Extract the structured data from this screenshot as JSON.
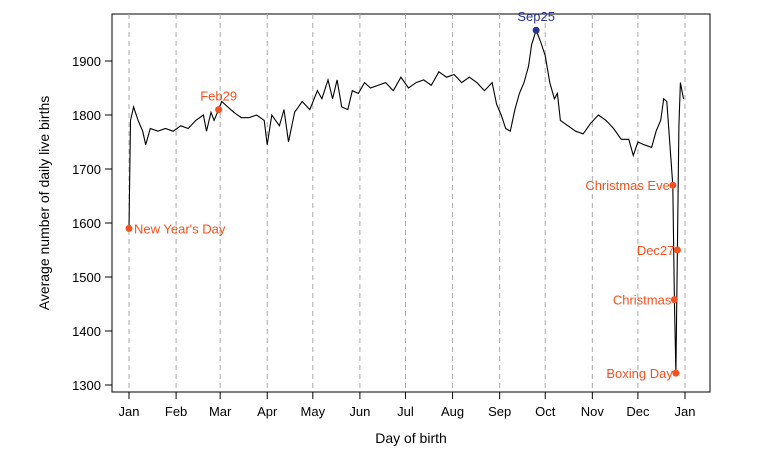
{
  "chart_data": {
    "type": "line",
    "xlabel": "Day of birth",
    "ylabel": "Average number of daily live births",
    "xlim": [
      1,
      366
    ],
    "ylim": [
      1300,
      1980
    ],
    "yticks": [
      1300,
      1400,
      1500,
      1600,
      1700,
      1800,
      1900
    ],
    "xticks": [
      {
        "label": "Jan",
        "day": 1
      },
      {
        "label": "Feb",
        "day": 32
      },
      {
        "label": "Mar",
        "day": 61
      },
      {
        "label": "Apr",
        "day": 92
      },
      {
        "label": "May",
        "day": 122
      },
      {
        "label": "Jun",
        "day": 153
      },
      {
        "label": "Jul",
        "day": 183
      },
      {
        "label": "Aug",
        "day": 214
      },
      {
        "label": "Sep",
        "day": 245
      },
      {
        "label": "Oct",
        "day": 275
      },
      {
        "label": "Nov",
        "day": 306
      },
      {
        "label": "Dec",
        "day": 336
      },
      {
        "label": "Jan",
        "day": 367
      }
    ],
    "grid": "vertical dashed at month starts",
    "line_color": "#000000",
    "series": [
      [
        1,
        1590
      ],
      [
        2,
        1790
      ],
      [
        4,
        1815
      ],
      [
        7,
        1790
      ],
      [
        10,
        1770
      ],
      [
        12,
        1745
      ],
      [
        15,
        1775
      ],
      [
        20,
        1770
      ],
      [
        25,
        1775
      ],
      [
        30,
        1770
      ],
      [
        35,
        1780
      ],
      [
        40,
        1775
      ],
      [
        45,
        1790
      ],
      [
        50,
        1800
      ],
      [
        52,
        1770
      ],
      [
        55,
        1805
      ],
      [
        57,
        1790
      ],
      [
        60,
        1810
      ],
      [
        62,
        1825
      ],
      [
        66,
        1815
      ],
      [
        70,
        1805
      ],
      [
        75,
        1795
      ],
      [
        80,
        1795
      ],
      [
        85,
        1800
      ],
      [
        90,
        1790
      ],
      [
        92,
        1745
      ],
      [
        95,
        1800
      ],
      [
        100,
        1780
      ],
      [
        103,
        1810
      ],
      [
        106,
        1750
      ],
      [
        110,
        1805
      ],
      [
        115,
        1825
      ],
      [
        120,
        1810
      ],
      [
        125,
        1845
      ],
      [
        128,
        1830
      ],
      [
        132,
        1865
      ],
      [
        135,
        1830
      ],
      [
        138,
        1865
      ],
      [
        141,
        1815
      ],
      [
        145,
        1810
      ],
      [
        148,
        1845
      ],
      [
        152,
        1840
      ],
      [
        156,
        1860
      ],
      [
        160,
        1850
      ],
      [
        165,
        1855
      ],
      [
        170,
        1860
      ],
      [
        175,
        1845
      ],
      [
        180,
        1870
      ],
      [
        185,
        1850
      ],
      [
        190,
        1860
      ],
      [
        195,
        1865
      ],
      [
        200,
        1855
      ],
      [
        205,
        1880
      ],
      [
        210,
        1870
      ],
      [
        215,
        1875
      ],
      [
        220,
        1860
      ],
      [
        225,
        1870
      ],
      [
        230,
        1860
      ],
      [
        235,
        1845
      ],
      [
        240,
        1860
      ],
      [
        243,
        1820
      ],
      [
        246,
        1800
      ],
      [
        249,
        1775
      ],
      [
        252,
        1770
      ],
      [
        255,
        1810
      ],
      [
        258,
        1840
      ],
      [
        261,
        1860
      ],
      [
        264,
        1890
      ],
      [
        266,
        1930
      ],
      [
        269,
        1957
      ],
      [
        272,
        1935
      ],
      [
        275,
        1910
      ],
      [
        278,
        1860
      ],
      [
        281,
        1830
      ],
      [
        283,
        1840
      ],
      [
        285,
        1790
      ],
      [
        290,
        1780
      ],
      [
        295,
        1770
      ],
      [
        300,
        1765
      ],
      [
        305,
        1785
      ],
      [
        310,
        1800
      ],
      [
        315,
        1790
      ],
      [
        320,
        1775
      ],
      [
        325,
        1755
      ],
      [
        330,
        1755
      ],
      [
        333,
        1725
      ],
      [
        336,
        1750
      ],
      [
        340,
        1745
      ],
      [
        345,
        1740
      ],
      [
        348,
        1770
      ],
      [
        351,
        1790
      ],
      [
        353,
        1830
      ],
      [
        355,
        1825
      ],
      [
        359,
        1670
      ],
      [
        360,
        1458
      ],
      [
        361,
        1322
      ],
      [
        362,
        1550
      ],
      [
        363,
        1780
      ],
      [
        364,
        1860
      ],
      [
        366,
        1830
      ]
    ],
    "annotations": [
      {
        "label": "New Year's Day",
        "day": 1,
        "value": 1590,
        "color": "#f4511e",
        "side": "right"
      },
      {
        "label": "Feb29",
        "day": 60,
        "value": 1810,
        "color": "#f4511e",
        "side": "above"
      },
      {
        "label": "Sep25",
        "day": 269,
        "value": 1957,
        "color": "#283593",
        "side": "above"
      },
      {
        "label": "Christmas Eve",
        "day": 359,
        "value": 1670,
        "color": "#f4511e",
        "side": "left"
      },
      {
        "label": "Dec27",
        "day": 362,
        "value": 1550,
        "color": "#f4511e",
        "side": "left"
      },
      {
        "label": "Christmas",
        "day": 360,
        "value": 1458,
        "color": "#f4511e",
        "side": "left"
      },
      {
        "label": "Boxing Day",
        "day": 361,
        "value": 1322,
        "color": "#f4511e",
        "side": "left"
      }
    ]
  }
}
